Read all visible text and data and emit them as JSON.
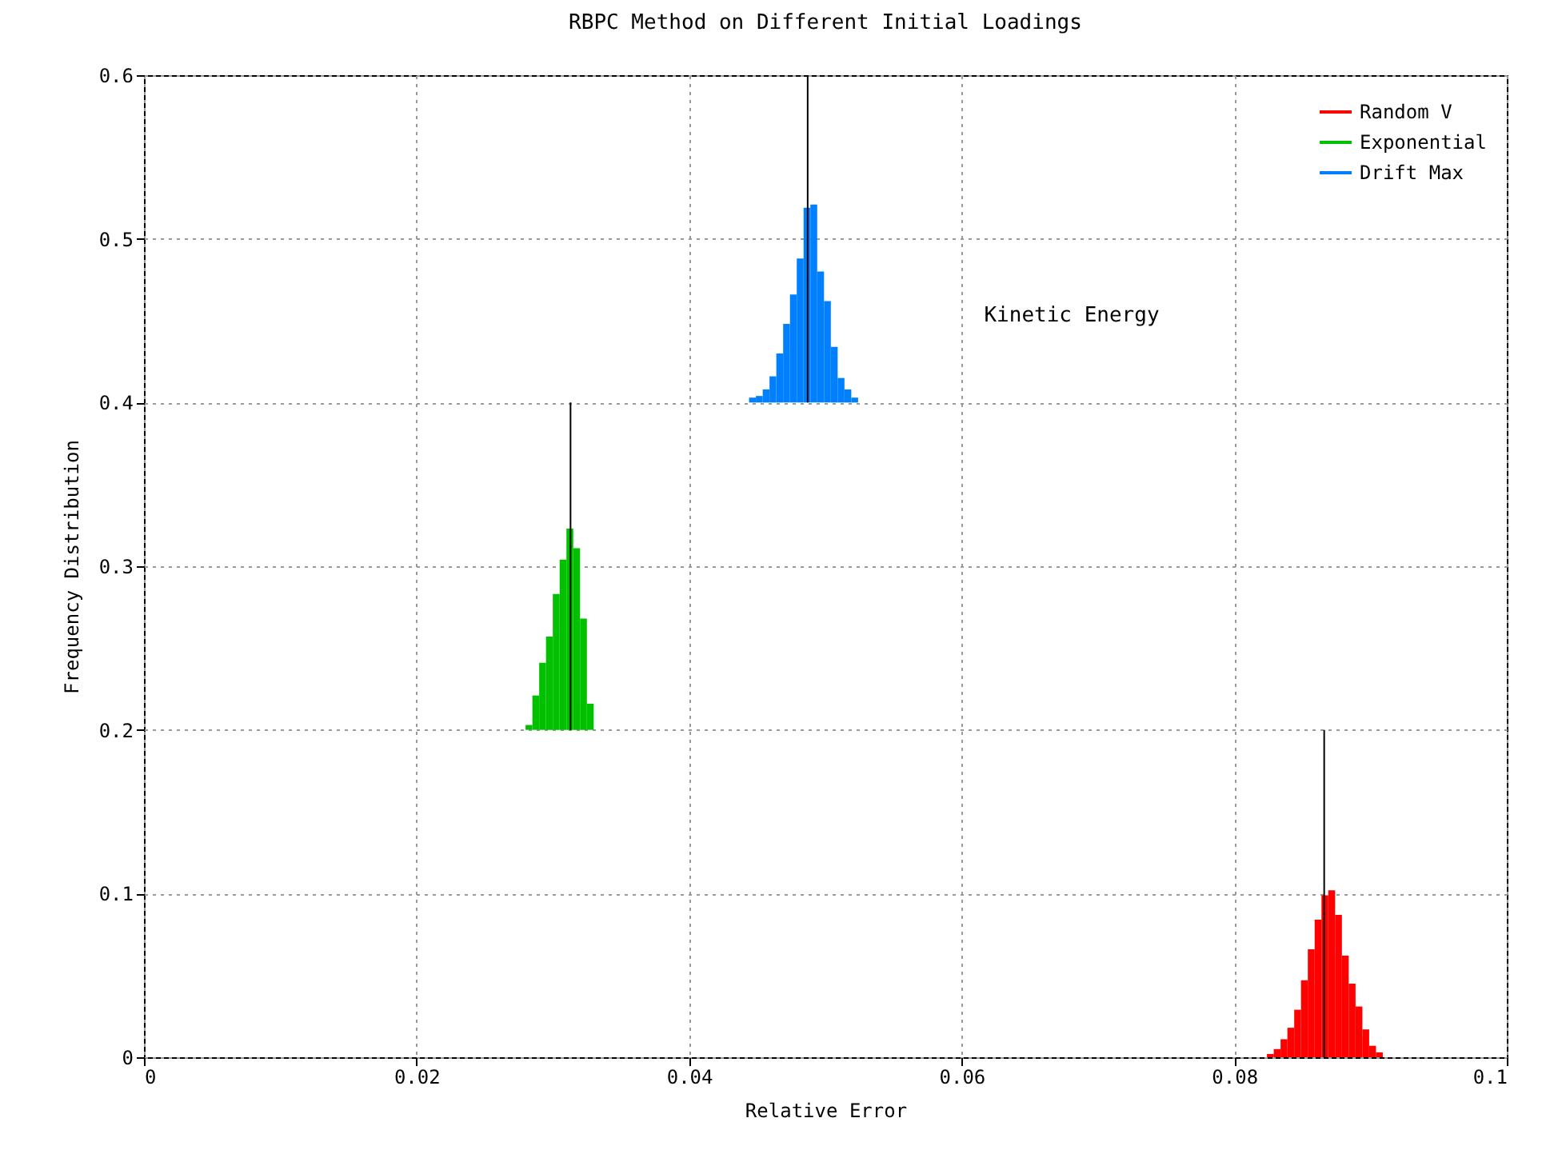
{
  "chart_data": {
    "type": "histogram",
    "title": "RBPC Method on Different Initial Loadings",
    "xlabel": "Relative Error",
    "ylabel": "Frequency Distribution",
    "annotations": [
      "Kinetic Energy"
    ],
    "xlim": [
      0,
      0.1
    ],
    "xticks": [
      0,
      0.02,
      0.04,
      0.06,
      0.08,
      0.1
    ],
    "ylim": [
      0,
      0.6
    ],
    "yticks": [
      0,
      0.1,
      0.2,
      0.3,
      0.4,
      0.5,
      0.6
    ],
    "grid": true,
    "legend": "top right",
    "series": [
      {
        "name": "Random V",
        "color": "#ff0000",
        "base": [
          0,
          0,
          0,
          0,
          0,
          0,
          0,
          0,
          0,
          0,
          0,
          0,
          0,
          0,
          0,
          0,
          0
        ],
        "bins": [
          0.0824,
          0.0829,
          0.0834,
          0.0839,
          0.0844,
          0.0849,
          0.0854,
          0.0859,
          0.0864,
          0.0869,
          0.0874,
          0.0879,
          0.0884,
          0.0889,
          0.0894,
          0.0899,
          0.0904,
          0.0909
        ],
        "values": [
          0.002,
          0.005,
          0.011,
          0.018,
          0.029,
          0.047,
          0.066,
          0.084,
          0.099,
          0.102,
          0.087,
          0.062,
          0.045,
          0.031,
          0.017,
          0.007,
          0.003
        ]
      },
      {
        "name": "Exponential",
        "color": "#00c000",
        "base": [
          0.2,
          0.2,
          0.2,
          0.2,
          0.2,
          0.2,
          0.2,
          0.2,
          0.2,
          0.2
        ],
        "bins": [
          0.028,
          0.0285,
          0.029,
          0.0295,
          0.03,
          0.0305,
          0.031,
          0.0315,
          0.032,
          0.0325,
          0.033
        ],
        "values": [
          0.003,
          0.021,
          0.041,
          0.057,
          0.083,
          0.104,
          0.123,
          0.111,
          0.068,
          0.016
        ]
      },
      {
        "name": "Drift Max",
        "color": "#0080ff",
        "base": [
          0.4,
          0.4,
          0.4,
          0.4,
          0.4,
          0.4,
          0.4,
          0.4,
          0.4,
          0.4,
          0.4,
          0.4,
          0.4,
          0.4,
          0.4,
          0.4
        ],
        "bins": [
          0.0444,
          0.0449,
          0.0454,
          0.0459,
          0.0464,
          0.0469,
          0.0474,
          0.0479,
          0.0484,
          0.0489,
          0.0494,
          0.0499,
          0.0504,
          0.0509,
          0.0514,
          0.0519,
          0.0524
        ],
        "values": [
          0.003,
          0.004,
          0.008,
          0.016,
          0.03,
          0.048,
          0.066,
          0.088,
          0.119,
          0.121,
          0.08,
          0.062,
          0.034,
          0.015,
          0.008,
          0.003
        ]
      },
      {
        "type": "line",
        "color": "#000000",
        "x": [
          0.0866,
          0.0866
        ],
        "values": [
          0,
          0.2
        ]
      },
      {
        "type": "line",
        "color": "#000000",
        "x": [
          0.0313,
          0.0313
        ],
        "values": [
          0.2,
          0.4
        ]
      },
      {
        "type": "line",
        "color": "#000000",
        "x": [
          0.0487,
          0.0487
        ],
        "values": [
          0.4,
          0.6
        ]
      }
    ]
  }
}
